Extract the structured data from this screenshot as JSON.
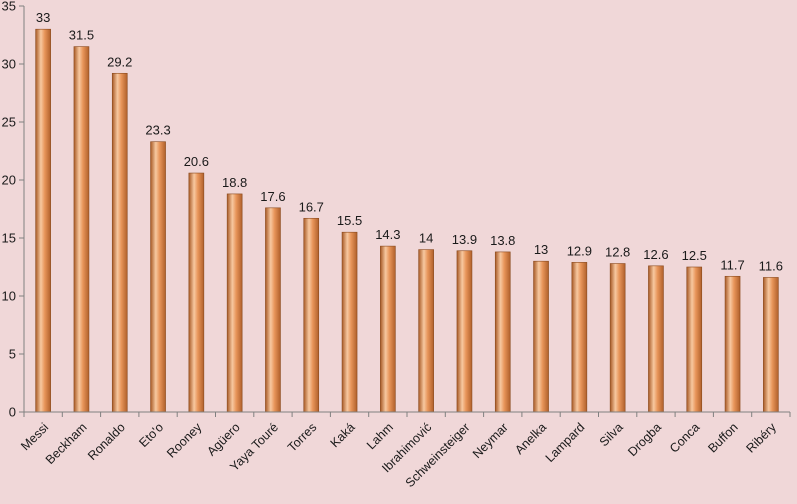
{
  "chart_data": {
    "type": "bar",
    "title": "",
    "xlabel": "",
    "ylabel": "",
    "ylim": [
      0,
      35
    ],
    "yticks": [
      0,
      5,
      10,
      15,
      20,
      25,
      30,
      35
    ],
    "grid": false,
    "legend": "none",
    "bar_color": "#d9823f",
    "categories": [
      "Messi",
      "Beckham",
      "Ronaldo",
      "Eto'o",
      "Rooney",
      "Agüero",
      "Yaya Touré",
      "Torres",
      "Kaká",
      "Lahm",
      "Ibrahimović",
      "Schweinsteiger",
      "Neymar",
      "Anelka",
      "Lampard",
      "Silva",
      "Drogba",
      "Conca",
      "Buffon",
      "Ribéry"
    ],
    "values": [
      33,
      31.5,
      29.2,
      23.3,
      20.6,
      18.8,
      17.6,
      16.7,
      15.5,
      14.3,
      14,
      13.9,
      13.8,
      13,
      12.9,
      12.8,
      12.6,
      12.5,
      11.7,
      11.6
    ],
    "value_labels": [
      "33",
      "31.5",
      "29.2",
      "23.3",
      "20.6",
      "18.8",
      "17.6",
      "16.7",
      "15.5",
      "14.3",
      "14",
      "13.9",
      "13.8",
      "13",
      "12.9",
      "12.8",
      "12.6",
      "12.5",
      "11.7",
      "11.6"
    ],
    "ytick_labels": [
      "0",
      "5",
      "10",
      "15",
      "20",
      "25",
      "30",
      "35"
    ]
  }
}
